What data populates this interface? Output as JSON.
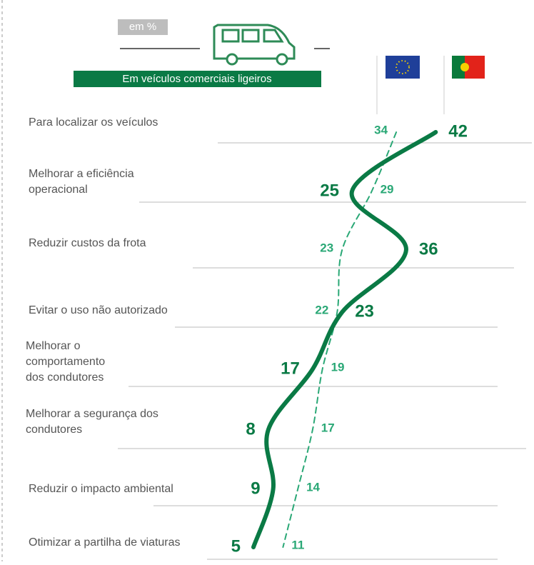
{
  "chart_data": {
    "type": "line",
    "unit_label": "em %",
    "banner": "Em veículos comerciais ligeiros",
    "categories": [
      "Para localizar os veículos",
      "Melhorar a eficiência operacional",
      "Reduzir custos da frota",
      "Evitar o uso não autorizado",
      "Melhorar o comportamento dos condutores",
      "Melhorar a segurança dos condutores",
      "Reduzir o impacto ambiental",
      "Otimizar a partilha de viaturas"
    ],
    "xlim": [
      0,
      50
    ],
    "series": [
      {
        "color": "#2aa876",
        "dashed": true,
        "values": [
          34,
          29,
          23,
          22,
          19,
          17,
          14,
          11
        ]
      },
      {
        "color": "#0a7a45",
        "dashed": false,
        "values": [
          42,
          25,
          36,
          23,
          17,
          8,
          9,
          5
        ]
      }
    ]
  }
}
